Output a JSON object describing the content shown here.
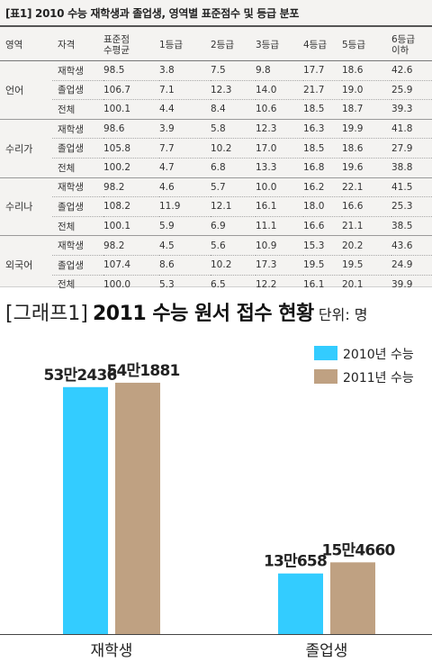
{
  "table": {
    "title": "[표1] 2010 수능 재학생과 졸업생, 영역별 표준점수 및 등급 분포",
    "headers": [
      "영역",
      "자격",
      "표준점\n수평균",
      "1등급",
      "2등급",
      "3등급",
      "4등급",
      "5등급",
      "6등급\n이하"
    ],
    "groups": [
      {
        "name": "언어",
        "rows": [
          {
            "type": "재학생",
            "values": [
              "98.5",
              "3.8",
              "7.5",
              "9.8",
              "17.7",
              "18.6",
              "42.6"
            ]
          },
          {
            "type": "졸업생",
            "values": [
              "106.7",
              "7.1",
              "12.3",
              "14.0",
              "21.7",
              "19.0",
              "25.9"
            ]
          },
          {
            "type": "전체",
            "values": [
              "100.1",
              "4.4",
              "8.4",
              "10.6",
              "18.5",
              "18.7",
              "39.3"
            ]
          }
        ]
      },
      {
        "name": "수리가",
        "rows": [
          {
            "type": "재학생",
            "values": [
              "98.6",
              "3.9",
              "5.8",
              "12.3",
              "16.3",
              "19.9",
              "41.8"
            ]
          },
          {
            "type": "졸업생",
            "values": [
              "105.8",
              "7.7",
              "10.2",
              "17.0",
              "18.5",
              "18.6",
              "27.9"
            ]
          },
          {
            "type": "전체",
            "values": [
              "100.2",
              "4.7",
              "6.8",
              "13.3",
              "16.8",
              "19.6",
              "38.8"
            ]
          }
        ]
      },
      {
        "name": "수리나",
        "rows": [
          {
            "type": "재학생",
            "values": [
              "98.2",
              "4.6",
              "5.7",
              "10.0",
              "16.2",
              "22.1",
              "41.5"
            ]
          },
          {
            "type": "졸업생",
            "values": [
              "108.2",
              "11.9",
              "12.1",
              "16.1",
              "18.0",
              "16.6",
              "25.3"
            ]
          },
          {
            "type": "전체",
            "values": [
              "100.1",
              "5.9",
              "6.9",
              "11.1",
              "16.6",
              "21.1",
              "38.5"
            ]
          }
        ]
      },
      {
        "name": "외국어",
        "rows": [
          {
            "type": "재학생",
            "values": [
              "98.2",
              "4.5",
              "5.6",
              "10.9",
              "15.3",
              "20.2",
              "43.6"
            ]
          },
          {
            "type": "졸업생",
            "values": [
              "107.4",
              "8.6",
              "10.2",
              "17.3",
              "19.5",
              "19.5",
              "24.9"
            ]
          },
          {
            "type": "전체",
            "values": [
              "100.0",
              "5.3",
              "6.5",
              "12.2",
              "16.1",
              "20.1",
              "39.9"
            ]
          }
        ]
      }
    ]
  },
  "chart_heading": {
    "tag": "[그래프1]",
    "title": "2011 수능 원서 접수 현황",
    "unit": "단위: 명"
  },
  "chart_data": {
    "type": "bar",
    "categories": [
      "재학생",
      "졸업생"
    ],
    "series": [
      {
        "name": "2010년 수능",
        "values": [
          532436,
          130658
        ],
        "labels": [
          "53만2436",
          "13만658"
        ],
        "color": "#33ccff"
      },
      {
        "name": "2011년 수능",
        "values": [
          541881,
          154660
        ],
        "labels": [
          "54만1881",
          "15만4660"
        ],
        "color": "#bfa182"
      }
    ],
    "legend": "top-right",
    "grid": false
  }
}
